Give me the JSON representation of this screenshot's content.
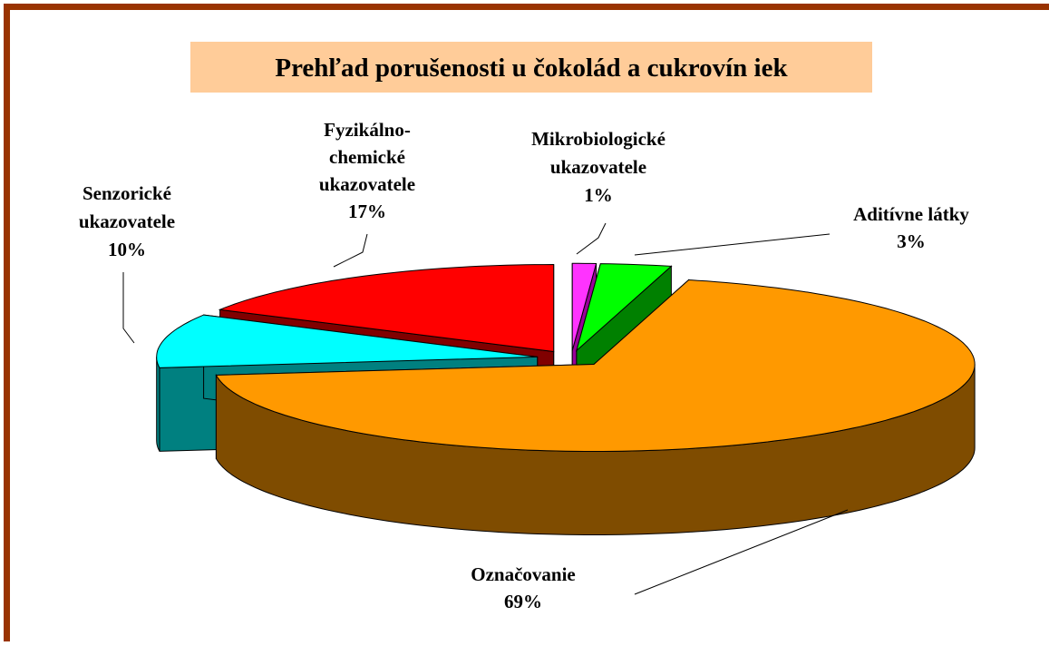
{
  "chart_data": {
    "type": "pie3d",
    "title": "Prehľad porušenosti u čokolád a cukrovín iek",
    "categories": [
      "Mikrobiologické ukazovatele",
      "Aditívne látky",
      "Označovanie",
      "Senzorické ukazovatele",
      "Fyzikálno-chemické ukazovatele"
    ],
    "values": [
      1,
      3,
      69,
      10,
      17
    ],
    "value_labels": [
      "1%",
      "3%",
      "69%",
      "10%",
      "17%"
    ],
    "colors": [
      "#ff33ff",
      "#00ff00",
      "#ff9900",
      "#00ffff",
      "#ff0000"
    ],
    "side_colors": [
      "#990099",
      "#008000",
      "#7f4c00",
      "#008080",
      "#800000"
    ]
  }
}
